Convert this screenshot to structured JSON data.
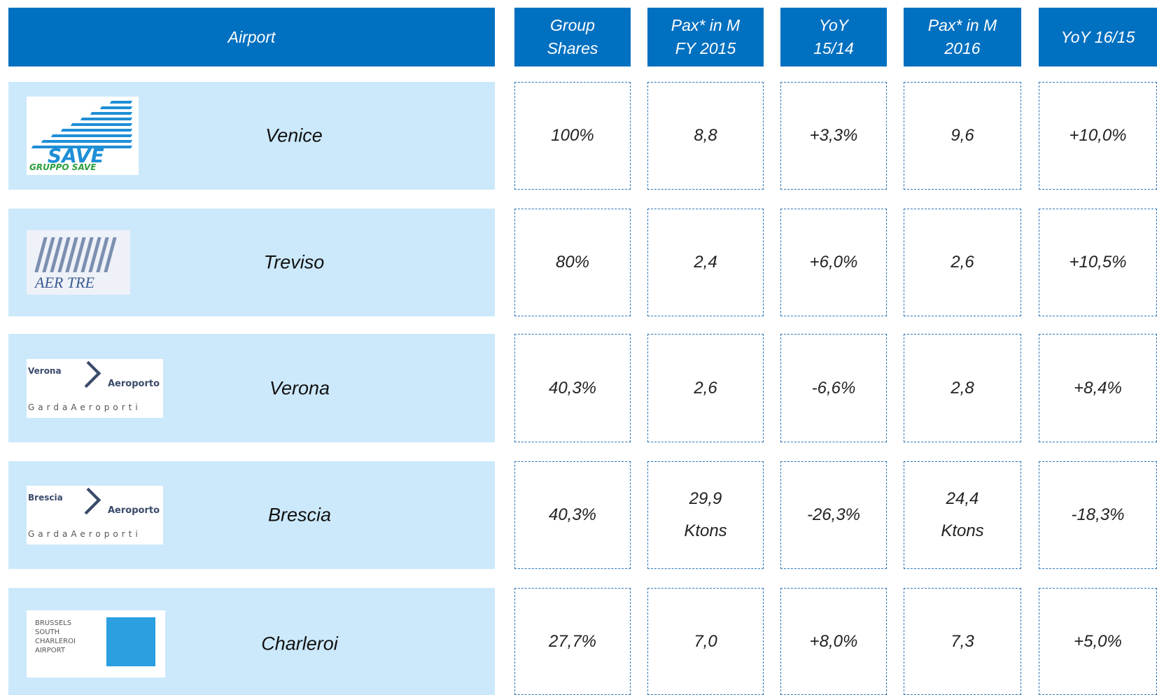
{
  "table": {
    "header": [
      [
        "Airport"
      ],
      [
        "Group",
        "Shares"
      ],
      [
        "Pax* in M",
        "FY 2015"
      ],
      [
        "YoY",
        "15/14"
      ],
      [
        "Pax* in M",
        "2016"
      ],
      [
        "YoY 16/15"
      ]
    ],
    "rows": [
      {
        "logo": [
          "SAVE",
          "GRUPPO SAVE"
        ],
        "airport": "Venice",
        "cells": [
          "100%",
          "8,8",
          "+3,3%",
          "9,6",
          "+10,0%"
        ]
      },
      {
        "logo": [
          "AER TRE"
        ],
        "airport": "Treviso",
        "cells": [
          "80%",
          "2,4",
          "+6,0%",
          "2,6",
          "+10,5%"
        ]
      },
      {
        "logo": [
          "Verona",
          "Aeroporto",
          "GardaAeroporti"
        ],
        "airport": "Verona",
        "cells": [
          "40,3%",
          "2,6",
          "-6,6%",
          "2,8",
          "+8,4%"
        ]
      },
      {
        "logo": [
          "Brescia",
          "Aeroporto",
          "GardaAeroporti"
        ],
        "airport": "Brescia",
        "cells": [
          "40,3%",
          [
            "29,9",
            "Ktons"
          ],
          "-26,3%",
          [
            "24,4",
            "Ktons"
          ],
          "-18,3%"
        ]
      },
      {
        "logo": [
          "BRUSSELS",
          "SOUTH",
          "CHARLEROI",
          "AIRPORT"
        ],
        "airport": "Charleroi",
        "cells": [
          "27,7%",
          "7,0",
          "+8,0%",
          "7,3",
          "+5,0%"
        ]
      }
    ]
  }
}
